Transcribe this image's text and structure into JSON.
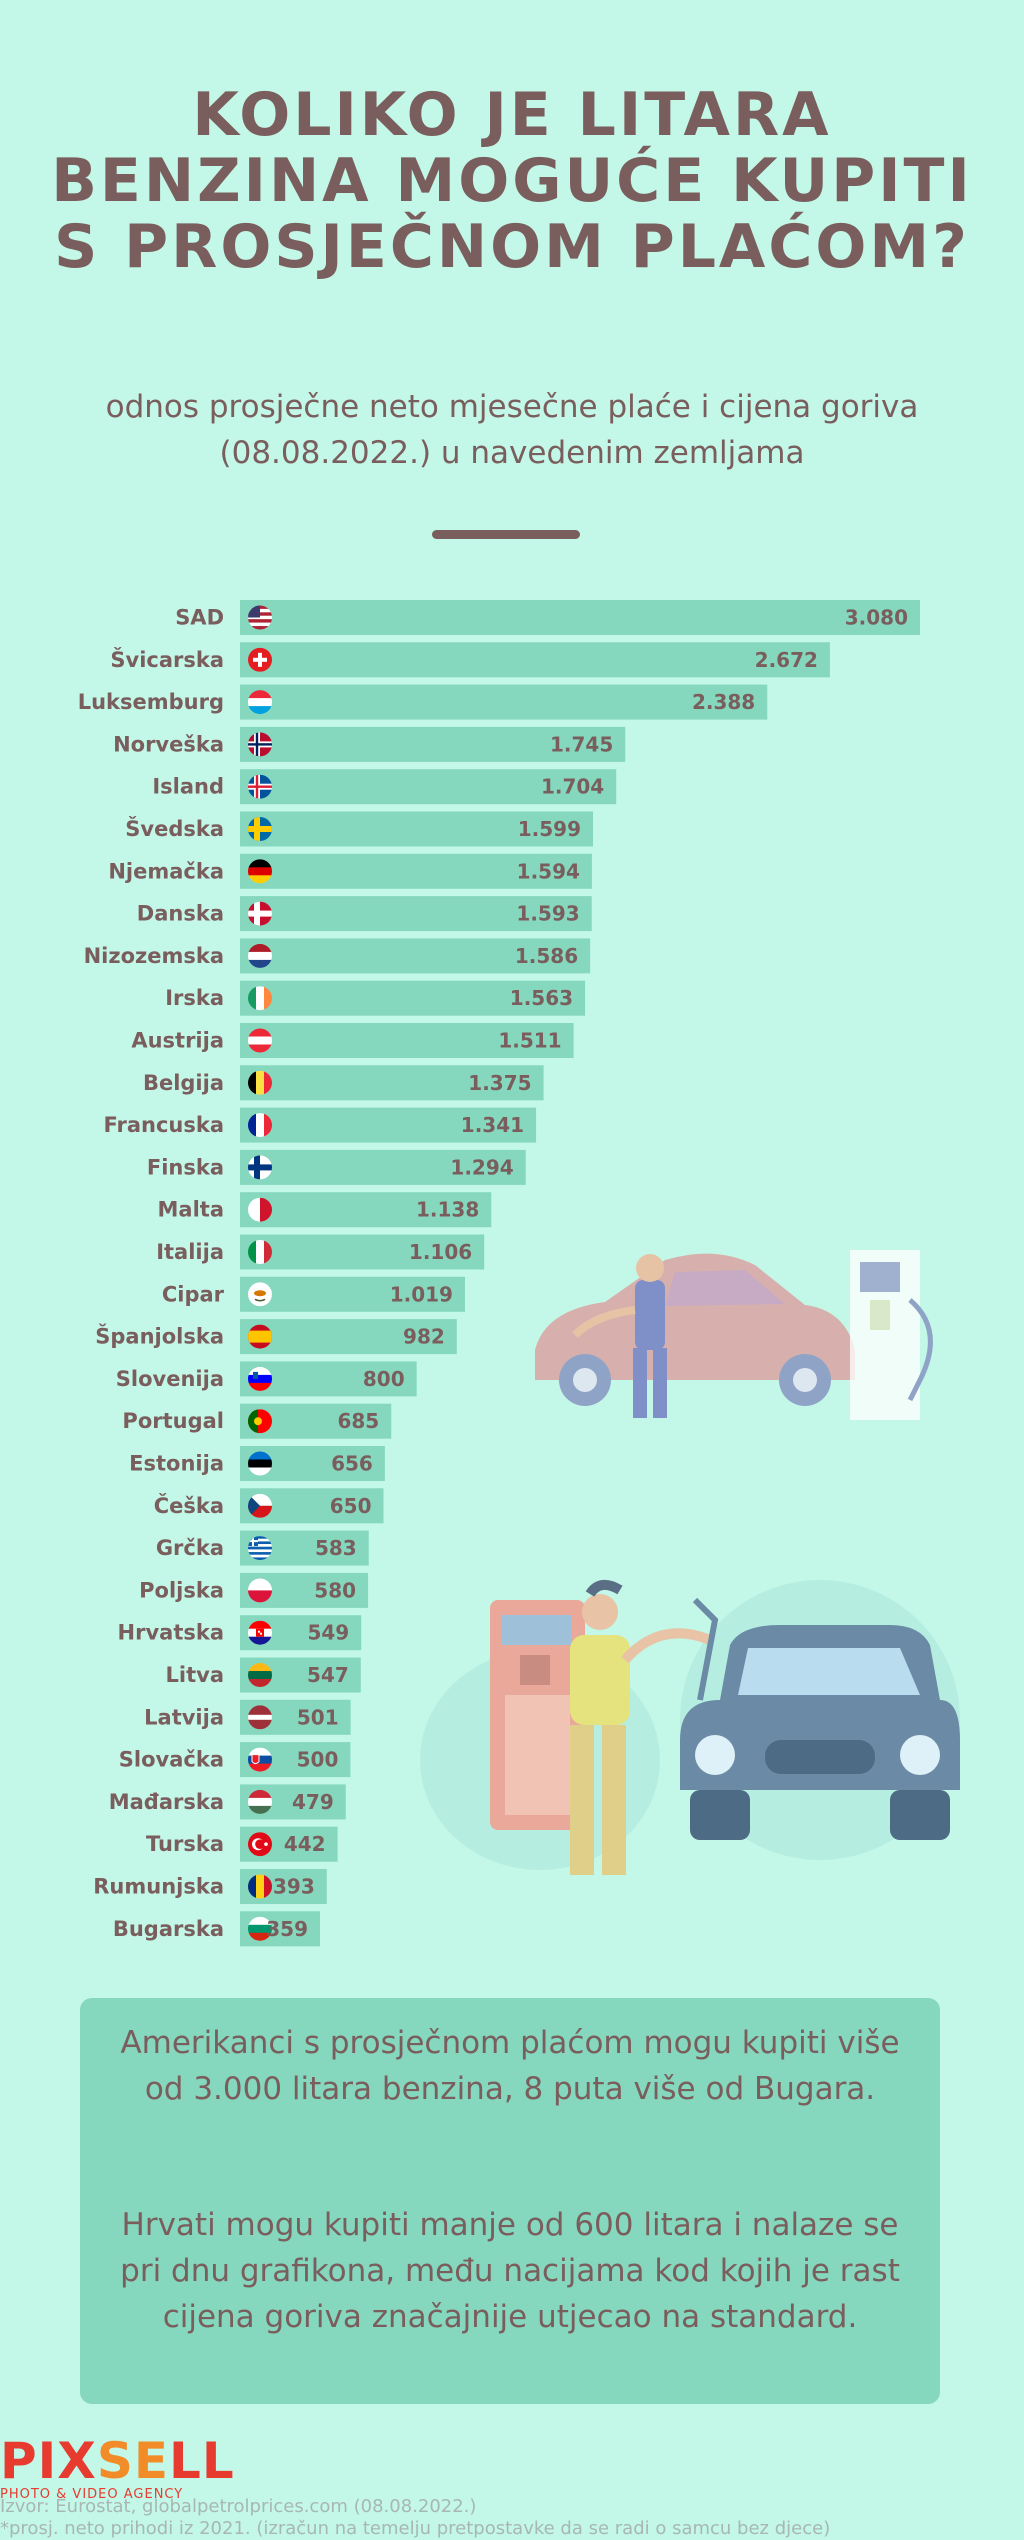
{
  "header": {
    "title": "KOLIKO JE LITARA BENZINA MOGUĆE KUPITI S PROSJEČNOM PLAĆOM?",
    "subtitle": "odnos prosječne neto mjesečne plaće i cijena goriva (08.08.2022.) u navedenim zemljama"
  },
  "chart_data": {
    "type": "bar",
    "orientation": "horizontal",
    "categories": [
      "SAD",
      "Švicarska",
      "Luksemburg",
      "Norveška",
      "Island",
      "Švedska",
      "Njemačka",
      "Danska",
      "Nizozemska",
      "Irska",
      "Austrija",
      "Belgija",
      "Francuska",
      "Finska",
      "Malta",
      "Italija",
      "Cipar",
      "Španjolska",
      "Slovenija",
      "Portugal",
      "Estonija",
      "Češka",
      "Grčka",
      "Poljska",
      "Hrvatska",
      "Litva",
      "Latvija",
      "Slovačka",
      "Mađarska",
      "Turska",
      "Rumunjska",
      "Bugarska"
    ],
    "values": [
      3080,
      2672,
      2388,
      1745,
      1704,
      1599,
      1594,
      1593,
      1586,
      1563,
      1511,
      1375,
      1341,
      1294,
      1138,
      1106,
      1019,
      982,
      800,
      685,
      656,
      650,
      583,
      580,
      549,
      547,
      501,
      500,
      479,
      442,
      393,
      359
    ],
    "value_labels": [
      "3.080",
      "2.672",
      "2.388",
      "1.745",
      "1.704",
      "1.599",
      "1.594",
      "1.593",
      "1.586",
      "1.563",
      "1.511",
      "1.375",
      "1.341",
      "1.294",
      "1.138",
      "1.106",
      "1.019",
      "982",
      "800",
      "685",
      "656",
      "650",
      "583",
      "580",
      "549",
      "547",
      "501",
      "500",
      "479",
      "442",
      "393",
      "359"
    ],
    "flags": [
      "us-flag",
      "ch-flag",
      "lu-flag",
      "no-flag",
      "is-flag",
      "se-flag",
      "de-flag",
      "dk-flag",
      "nl-flag",
      "ie-flag",
      "at-flag",
      "be-flag",
      "fr-flag",
      "fi-flag",
      "mt-flag",
      "it-flag",
      "cy-flag",
      "es-flag",
      "si-flag",
      "pt-flag",
      "ee-flag",
      "cz-flag",
      "gr-flag",
      "pl-flag",
      "hr-flag",
      "lt-flag",
      "lv-flag",
      "sk-flag",
      "hu-flag",
      "tr-flag",
      "ro-flag",
      "bg-flag"
    ],
    "grid": false,
    "legend": "none"
  },
  "colors": {
    "background": "#c3f7e8",
    "bar": "#85d7be",
    "text": "#7a5e5d",
    "note_box": "#85d7be"
  },
  "notes": {
    "paragraph1": "Amerikanci s prosječnom plaćom mogu kupiti više od 3.000 litara benzina, 8 puta više od Bugara.",
    "paragraph2": "Hrvati mogu kupiti manje od 600 litara i nalaze se pri dnu grafikona, među nacijama kod kojih je rast cijena goriva značajnije utjecao na standard."
  },
  "footer": {
    "logo_part1": "PIX",
    "logo_part2": "SE",
    "logo_part3": "LL",
    "logo_sub": "PHOTO & VIDEO AGENCY",
    "source": "Izvor: Eurostat, globalpetrolprices.com (08.08.2022.)",
    "footnote": "*prosj. neto prihodi iz 2021. (izračun na temelju pretpostavke da se radi o samcu bez djece)"
  },
  "illustrations": [
    "gas-station-attendant-illustration",
    "refueling-car-illustration"
  ]
}
